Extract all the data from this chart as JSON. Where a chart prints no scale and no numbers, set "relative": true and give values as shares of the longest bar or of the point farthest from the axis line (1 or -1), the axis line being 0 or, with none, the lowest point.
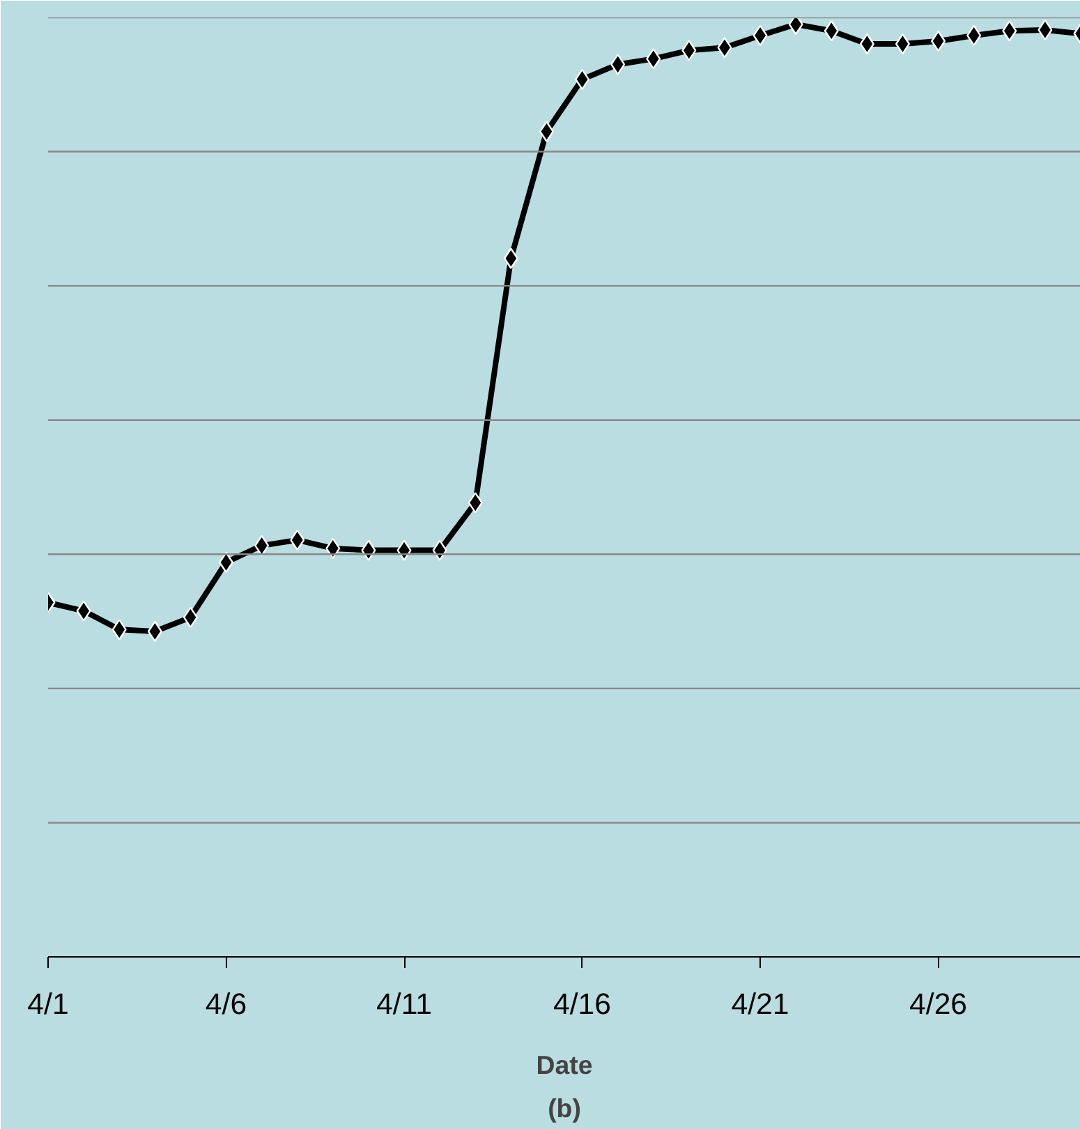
{
  "chart_data": {
    "type": "line",
    "relative": true,
    "xlabel": "Date",
    "annotations": [
      "(b)"
    ],
    "categories": [
      "4/1",
      null,
      null,
      null,
      null,
      "4/6",
      null,
      null,
      null,
      null,
      "4/11",
      null,
      null,
      null,
      null,
      "4/16",
      null,
      null,
      null,
      null,
      "4/21",
      null,
      null,
      null,
      null,
      "4/26",
      null,
      null,
      null,
      null
    ],
    "series": [
      {
        "color": "#000000",
        "values": [
          0.38,
          0.371,
          0.351,
          0.349,
          0.364,
          0.423,
          0.441,
          0.447,
          0.438,
          0.436,
          0.436,
          0.436,
          0.487,
          0.749,
          0.885,
          0.941,
          0.957,
          0.963,
          0.972,
          0.975,
          0.988,
          1.0,
          0.993,
          0.979,
          0.979,
          0.982,
          0.988,
          0.993,
          0.994,
          0.99
        ]
      }
    ],
    "grid": "y",
    "tick_labels": "x",
    "marker": "diamond",
    "line_style": "solid"
  }
}
